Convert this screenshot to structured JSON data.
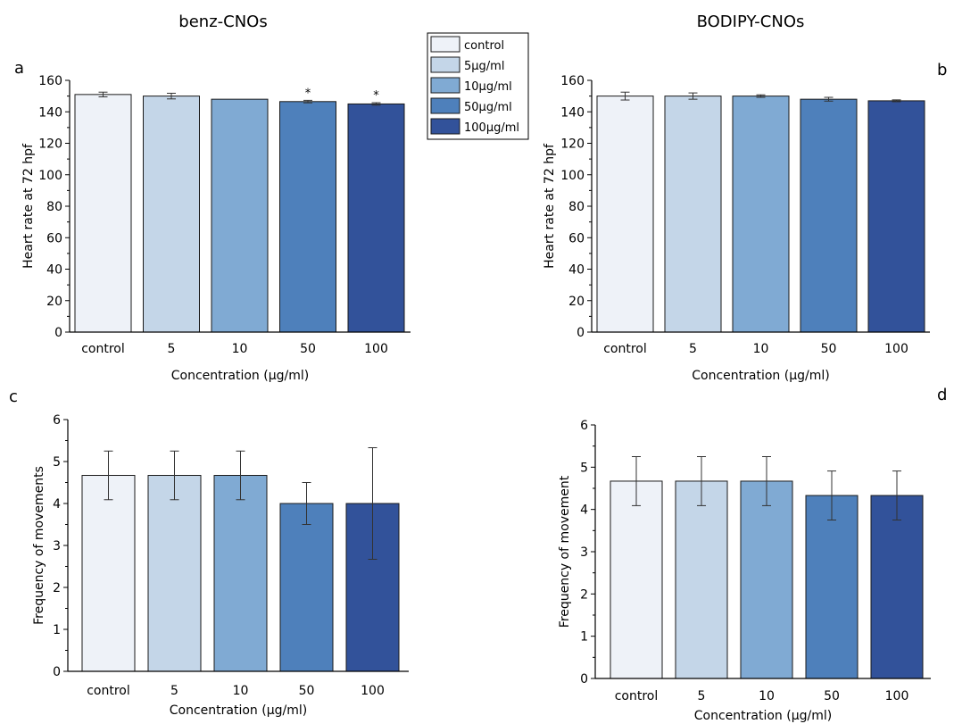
{
  "titles": {
    "left": "benz-CNOs",
    "right": "BODIPY-CNOs"
  },
  "panel_letters": {
    "a": "a",
    "b": "b",
    "c": "c",
    "d": "d"
  },
  "legend": {
    "placement": "top-center",
    "entries": [
      {
        "label": "control",
        "color": "#eef2f8"
      },
      {
        "label": "5µg/ml",
        "color": "#c4d6e8"
      },
      {
        "label": "10µg/ml",
        "color": "#80aad3"
      },
      {
        "label": "50µg/ml",
        "color": "#4e80bb"
      },
      {
        "label": "100µg/ml",
        "color": "#32529a"
      }
    ]
  },
  "chart_data": [
    {
      "id": "a",
      "type": "bar",
      "categories": [
        "control",
        "5",
        "10",
        "50",
        "100"
      ],
      "values": [
        151,
        150,
        148,
        146.5,
        145
      ],
      "errors": [
        1.5,
        1.8,
        0,
        0.8,
        0.8
      ],
      "significance": [
        "",
        "",
        "",
        "*",
        "*"
      ],
      "xlabel": "Concentration (µg/ml)",
      "ylabel": "Heart rate at 72 hpf",
      "ylim": [
        0,
        160
      ],
      "yticks": [
        0,
        20,
        40,
        60,
        80,
        100,
        120,
        140,
        160
      ]
    },
    {
      "id": "b",
      "type": "bar",
      "categories": [
        "control",
        "5",
        "10",
        "50",
        "100"
      ],
      "values": [
        150,
        150,
        150,
        148,
        147
      ],
      "errors": [
        2.5,
        2.0,
        0.8,
        1.2,
        0.6
      ],
      "significance": [
        "",
        "",
        "",
        "",
        ""
      ],
      "xlabel": "Concentration (µg/ml)",
      "ylabel": "Heart rate at 72 hpf",
      "ylim": [
        0,
        160
      ],
      "yticks": [
        0,
        20,
        40,
        60,
        80,
        100,
        120,
        140,
        160
      ]
    },
    {
      "id": "c",
      "type": "bar",
      "categories": [
        "control",
        "5",
        "10",
        "50",
        "100"
      ],
      "values": [
        4.67,
        4.67,
        4.67,
        4.0,
        4.0
      ],
      "errors": [
        0.58,
        0.58,
        0.58,
        0.5,
        1.33
      ],
      "significance": [
        "",
        "",
        "",
        "",
        ""
      ],
      "xlabel": "Concentration (µg/ml)",
      "ylabel": "Frequency of movements",
      "ylim": [
        0,
        6
      ],
      "yticks": [
        0,
        1,
        2,
        3,
        4,
        5,
        6
      ]
    },
    {
      "id": "d",
      "type": "bar",
      "categories": [
        "control",
        "5",
        "10",
        "50",
        "100"
      ],
      "values": [
        4.67,
        4.67,
        4.67,
        4.33,
        4.33
      ],
      "errors": [
        0.58,
        0.58,
        0.58,
        0.58,
        0.58
      ],
      "significance": [
        "",
        "",
        "",
        "",
        ""
      ],
      "xlabel": "Concentration (µg/ml)",
      "ylabel": "Frequency of movement",
      "ylim": [
        0,
        6
      ],
      "yticks": [
        0,
        1,
        2,
        3,
        4,
        5,
        6
      ]
    }
  ]
}
